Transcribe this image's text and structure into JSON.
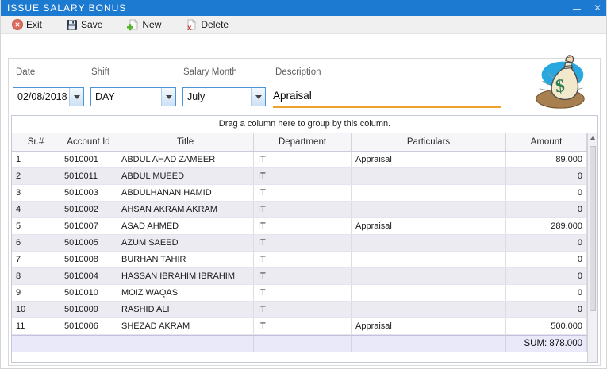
{
  "window": {
    "title": "ISSUE SALARY BONUS"
  },
  "titlebar": {
    "minimize_icon": "–",
    "close_icon": "✕"
  },
  "toolbar": {
    "items": [
      {
        "label": "Exit",
        "icon": "exit-icon",
        "glyph": "✕"
      },
      {
        "label": "Save",
        "icon": "save-icon"
      },
      {
        "label": "New",
        "icon": "new-icon",
        "glyph": "+"
      },
      {
        "label": "Delete",
        "icon": "delete-icon",
        "glyph": "✗"
      }
    ]
  },
  "form": {
    "fields": [
      {
        "label": "Date",
        "value": "02/08/2018",
        "type": "combo"
      },
      {
        "label": "Shift",
        "value": "DAY",
        "type": "combo"
      },
      {
        "label": "Salary Month",
        "value": "July",
        "type": "combo"
      },
      {
        "label": "Description",
        "value": "Apraisal",
        "type": "text"
      }
    ]
  },
  "grid": {
    "group_hint": "Drag a column here to group by this column.",
    "columns": [
      "Sr.#",
      "Account Id",
      "Title",
      "Department",
      "Particulars",
      "Amount"
    ],
    "rows": [
      [
        "1",
        "5010001",
        "ABDUL AHAD ZAMEER",
        "IT",
        "Appraisal",
        "89.000"
      ],
      [
        "2",
        "5010011",
        "ABDUL MUEED",
        "IT",
        "",
        "0"
      ],
      [
        "3",
        "5010003",
        "ABDULHANAN HAMID",
        "IT",
        "",
        "0"
      ],
      [
        "4",
        "5010002",
        "AHSAN AKRAM AKRAM",
        "IT",
        "",
        "0"
      ],
      [
        "5",
        "5010007",
        "ASAD AHMED",
        "IT",
        "Appraisal",
        "289.000"
      ],
      [
        "6",
        "5010005",
        "AZUM SAEED",
        "IT",
        "",
        "0"
      ],
      [
        "7",
        "5010008",
        "BURHAN TAHIR",
        "IT",
        "",
        "0"
      ],
      [
        "8",
        "5010004",
        "HASSAN IBRAHIM IBRAHIM",
        "IT",
        "",
        "0"
      ],
      [
        "9",
        "5010010",
        "MOIZ WAQAS",
        "IT",
        "",
        "0"
      ],
      [
        "10",
        "5010009",
        "RASHID ALI",
        "IT",
        "",
        "0"
      ],
      [
        "11",
        "5010006",
        "SHEZAD AKRAM",
        "IT",
        "Appraisal",
        "500.000"
      ]
    ],
    "footer": {
      "sum": "SUM: 878.000"
    }
  },
  "colors": {
    "titlebar_blue": "#1c7ad0",
    "toolbar_gray": "#f0f0f0",
    "combo_border_blue": "#4b94d8",
    "description_underline_orange": "#f0a22e",
    "alt_row": "#ebebf1",
    "footer_lavender": "#e9e9f9",
    "exit_red": "#dd6b5e",
    "save_navy": "#2b3c4f",
    "new_green": "#53b426",
    "delete_red": "#c9302c",
    "dollar_green": "#2f7d52"
  }
}
